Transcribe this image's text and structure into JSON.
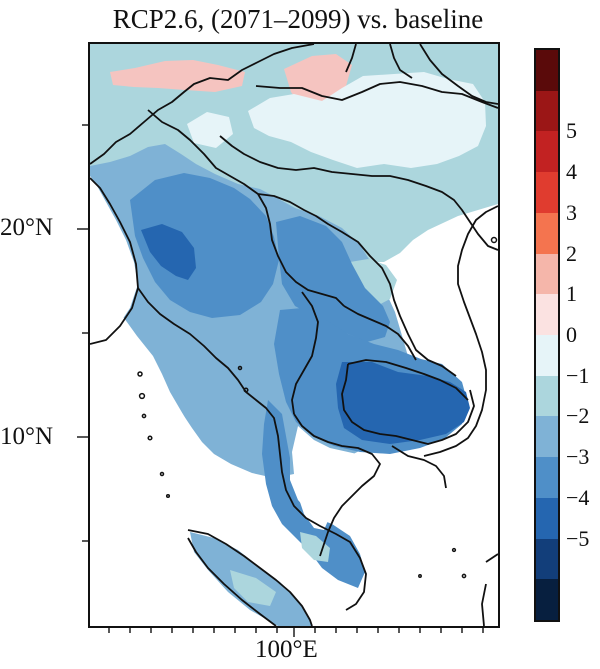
{
  "title": "RCP2.6, (2071–2099) vs. baseline",
  "axes": {
    "lat_labels": [
      "20°N",
      "10°N"
    ],
    "lon_labels": [
      "100°E"
    ]
  },
  "colorbar": {
    "labels": [
      "5",
      "4",
      "3",
      "2",
      "1",
      "0",
      "−1",
      "−2",
      "−3",
      "−4",
      "−5"
    ],
    "colors": [
      "#5a0a0a",
      "#9b1616",
      "#c22222",
      "#e03c2f",
      "#f4744f",
      "#f5b6aa",
      "#fbe2e1",
      "#e6f4f8",
      "#acd6dd",
      "#7fb2d6",
      "#4f8fc8",
      "#2566b0",
      "#123e7a",
      "#071f3f"
    ]
  },
  "map_colors": {
    "pale_pink": "#f5c4c0",
    "very_light_blue": "#e6f4f8",
    "light_blue": "#acd6dd",
    "mid_blue": "#7fb2d6",
    "blue": "#4f8fc8",
    "dark_blue": "#2566b0",
    "ocean": "#ffffff",
    "border": "#111111"
  }
}
